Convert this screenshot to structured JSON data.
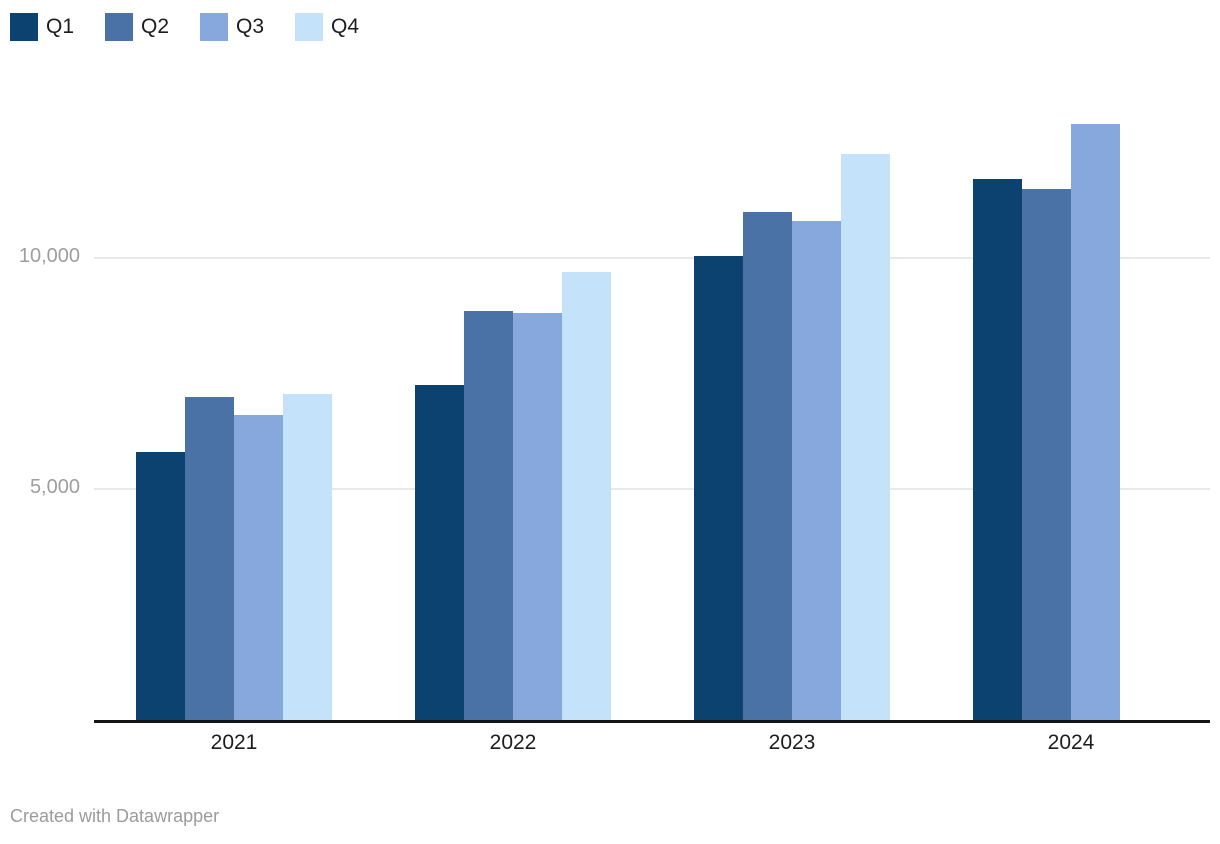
{
  "footer": {
    "credit": "Created with Datawrapper"
  },
  "style": {
    "background": "#ffffff",
    "axis_color": "#141414",
    "gridline_color": "#e9e9e9",
    "ytick_label_color": "#9e9e9e",
    "xtick_label_color": "#1d1d1d",
    "legend_label_color": "#1d1d1d",
    "credit_color": "#9b9b9b"
  },
  "chart_data": {
    "type": "bar",
    "grouped": true,
    "title": "",
    "xlabel": "",
    "ylabel": "",
    "categories": [
      "2021",
      "2022",
      "2023",
      "2024"
    ],
    "series": [
      {
        "name": "Q1",
        "color": "#0b4270",
        "values": [
          5800,
          7250,
          10050,
          11700
        ]
      },
      {
        "name": "Q2",
        "color": "#4a72a6",
        "values": [
          7000,
          8850,
          11000,
          11500
        ]
      },
      {
        "name": "Q3",
        "color": "#86a8dd",
        "values": [
          6600,
          8800,
          10800,
          12900
        ]
      },
      {
        "name": "Q4",
        "color": "#c4e3fa",
        "values": [
          7050,
          9700,
          12250,
          null
        ]
      }
    ],
    "yticks": [
      5000,
      10000
    ],
    "ytick_labels": [
      "5,000",
      "10,000"
    ],
    "ylim": [
      0,
      13500
    ],
    "grid": "horizontal",
    "legend_position": "top-left"
  }
}
